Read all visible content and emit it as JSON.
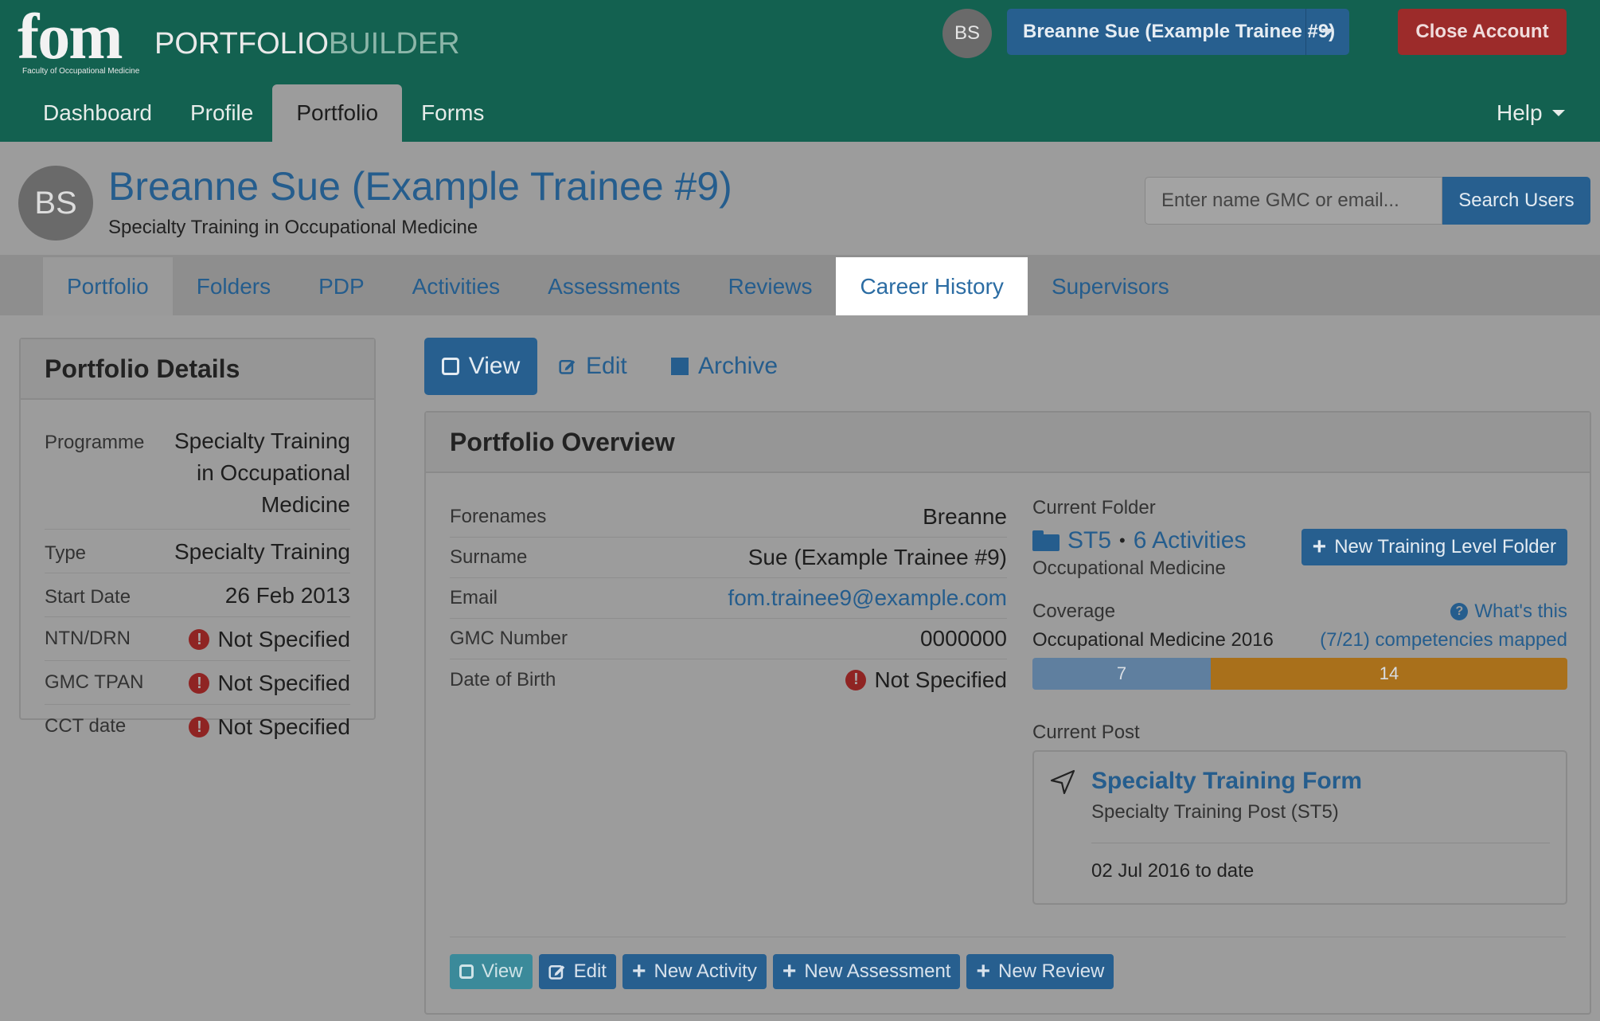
{
  "topbar": {
    "logo_text": "fom",
    "logo_caption": "Faculty of Occupational Medicine",
    "brand_part1": "PORTFOLIO",
    "brand_part2": "BUILDER",
    "user_initials": "BS",
    "user_menu_label": "Breanne Sue (Example Trainee #9)",
    "close_account_label": "Close Account",
    "nav": [
      "Dashboard",
      "Profile",
      "Portfolio",
      "Forms"
    ],
    "active_nav": "Portfolio",
    "help_label": "Help"
  },
  "header": {
    "initials": "BS",
    "title": "Breanne Sue (Example Trainee #9)",
    "subtitle": "Specialty Training in Occupational Medicine",
    "search_placeholder": "Enter name GMC or email...",
    "search_button": "Search Users"
  },
  "subnav": {
    "items": [
      "Portfolio",
      "Folders",
      "PDP",
      "Activities",
      "Assessments",
      "Reviews",
      "Career History",
      "Supervisors"
    ],
    "highlighted": "Career History"
  },
  "portfolio_details": {
    "title": "Portfolio Details",
    "rows": [
      {
        "label": "Programme",
        "value": "Specialty Training in Occupational Medicine"
      },
      {
        "label": "Type",
        "value": "Specialty Training"
      },
      {
        "label": "Start Date",
        "value": "26 Feb 2013"
      },
      {
        "label": "NTN/DRN",
        "value": "Not Specified"
      },
      {
        "label": "GMC TPAN",
        "value": "Not Specified"
      },
      {
        "label": "CCT date",
        "value": "Not Specified"
      }
    ]
  },
  "toolbar": {
    "view": "View",
    "edit": "Edit",
    "archive": "Archive"
  },
  "overview": {
    "title": "Portfolio Overview",
    "rows": [
      {
        "label": "Forenames",
        "value": "Breanne"
      },
      {
        "label": "Surname",
        "value": "Sue (Example Trainee #9)"
      },
      {
        "label": "Email",
        "value": "fom.trainee9@example.com"
      },
      {
        "label": "GMC Number",
        "value": "0000000"
      },
      {
        "label": "Date of Birth",
        "value": "Not Specified"
      }
    ],
    "current_folder_label": "Current Folder",
    "folder_level": "ST5",
    "folder_activities": "6 Activities",
    "folder_specialty": "Occupational Medicine",
    "new_folder_button": "New Training Level Folder",
    "coverage_label": "Coverage",
    "whats_this": "What's this",
    "curriculum": "Occupational Medicine 2016",
    "competencies_mapped": "(7/21) competencies mapped",
    "coverage": {
      "mapped": 7,
      "unmapped": 14,
      "mapped_color": "#5f7f9f",
      "unmapped_color": "#a9701b"
    },
    "current_post_label": "Current Post",
    "post_title": "Specialty Training Form",
    "post_sub": "Specialty Training Post (ST5)",
    "post_date": "02 Jul 2016 to date",
    "buttons": [
      "View",
      "Edit",
      "New Activity",
      "New Assessment",
      "New Review"
    ]
  }
}
